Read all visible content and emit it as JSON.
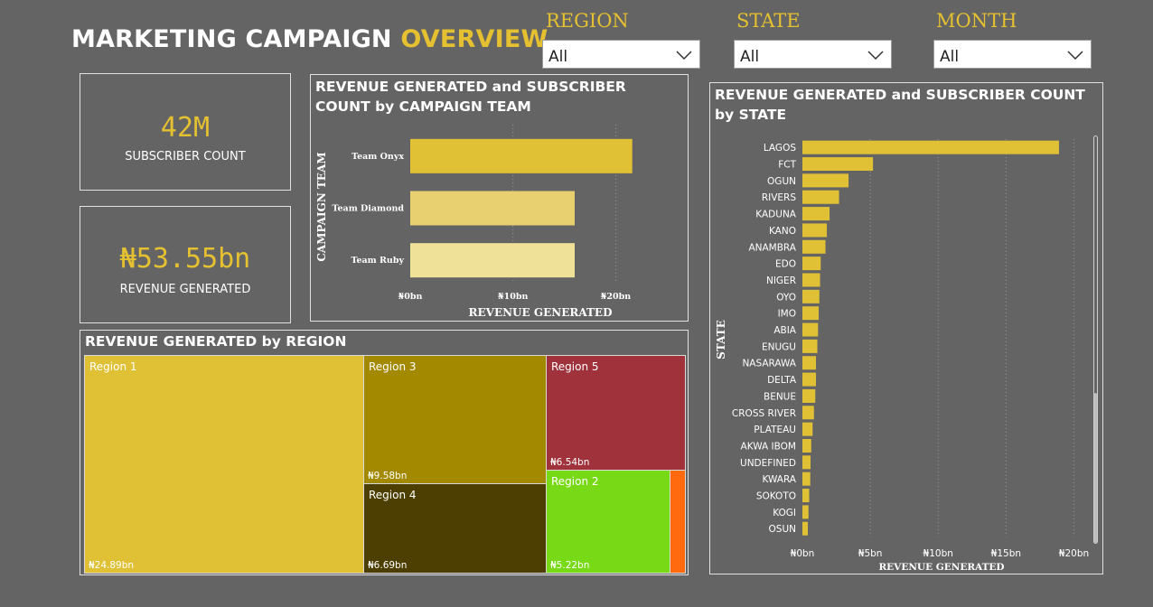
{
  "header": {
    "title_main": "MARKETING CAMPAIGN",
    "title_accent": "OVERVIEW"
  },
  "filters": [
    {
      "label": "REGION",
      "value": "All"
    },
    {
      "label": "STATE",
      "value": "All"
    },
    {
      "label": "MONTH",
      "value": "All"
    }
  ],
  "kpis": {
    "subscriber_value": "42M",
    "subscriber_label": "SUBSCRIBER COUNT",
    "revenue_value": "₦53.55bn",
    "revenue_label": "REVENUE GENERATED"
  },
  "colors": {
    "background": "#646464",
    "accent": "#e5c131",
    "region_1": "#e0c135",
    "region_3": "#a38900",
    "region_4": "#4d3f02",
    "region_5": "#a0323c",
    "region_2": "#78da16",
    "region_other": "#ff6a0e"
  },
  "chart_data": [
    {
      "type": "bar",
      "orientation": "horizontal",
      "title": "REVENUE GENERATED and SUBSCRIBER COUNT by CAMPAIGN TEAM",
      "xlabel": "REVENUE GENERATED",
      "ylabel": "CAMPAIGN TEAM",
      "categories": [
        "Team Onyx",
        "Team Diamond",
        "Team Ruby"
      ],
      "values": [
        21.6,
        16.0,
        16.0
      ],
      "xlim": [
        0,
        24
      ],
      "xticks": [
        0,
        10,
        20
      ],
      "xtick_labels": [
        "₦0bn",
        "₦10bn",
        "₦20bn"
      ],
      "colors": [
        "#e0c135",
        "#e8d071",
        "#f0e199"
      ],
      "grid": "vertical-dotted"
    },
    {
      "type": "treemap",
      "title": "REVENUE GENERATED by REGION",
      "categories": [
        "Region 1",
        "Region 3",
        "Region 4",
        "Region 5",
        "Region 2"
      ],
      "values": [
        24.89,
        9.58,
        6.69,
        6.54,
        5.22
      ],
      "value_labels": [
        "₦24.89bn",
        "₦9.58bn",
        "₦6.69bn",
        "₦6.54bn",
        "₦5.22bn"
      ]
    },
    {
      "type": "bar",
      "orientation": "horizontal",
      "title": "REVENUE GENERATED and SUBSCRIBER COUNT by STATE",
      "xlabel": "REVENUE GENERATED",
      "ylabel": "STATE",
      "categories": [
        "LAGOS",
        "FCT",
        "OGUN",
        "RIVERS",
        "KADUNA",
        "KANO",
        "ANAMBRA",
        "EDO",
        "NIGER",
        "OYO",
        "IMO",
        "ABIA",
        "ENUGU",
        "NASARAWA",
        "DELTA",
        "BENUE",
        "CROSS RIVER",
        "PLATEAU",
        "AKWA IBOM",
        "UNDEFINED",
        "KWARA",
        "SOKOTO",
        "KOGI",
        "OSUN"
      ],
      "values": [
        18.9,
        5.2,
        3.4,
        2.7,
        2.0,
        1.8,
        1.7,
        1.35,
        1.3,
        1.25,
        1.2,
        1.15,
        1.1,
        1.0,
        1.0,
        0.95,
        0.85,
        0.75,
        0.65,
        0.6,
        0.58,
        0.5,
        0.45,
        0.4
      ],
      "xlim": [
        0,
        20.5
      ],
      "xticks": [
        0,
        5,
        10,
        15,
        20
      ],
      "xtick_labels": [
        "₦0bn",
        "₦5bn",
        "₦10bn",
        "₦15bn",
        "₦20bn"
      ],
      "color": "#e0c135",
      "grid": "vertical-dotted"
    }
  ]
}
